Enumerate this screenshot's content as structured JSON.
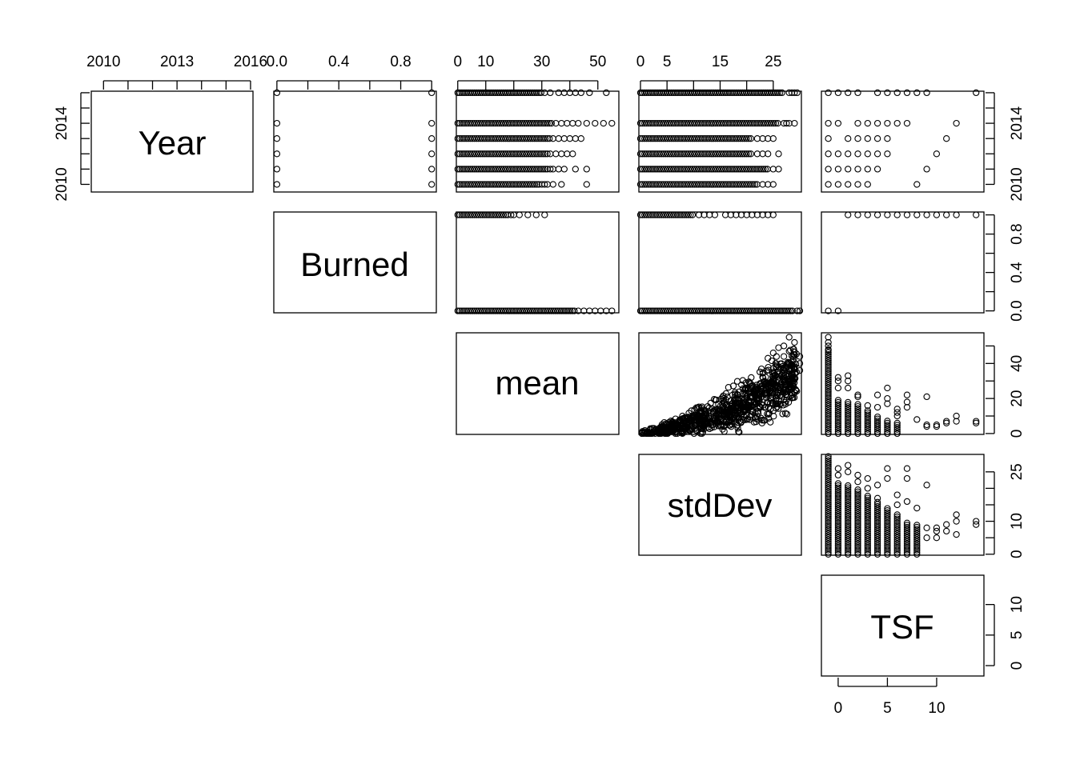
{
  "chart_data": {
    "type": "scatter-matrix",
    "variables": [
      "Year",
      "Burned",
      "mean",
      "stdDev",
      "TSF"
    ],
    "axes": {
      "Year": {
        "range": [
          2009.5,
          2016.1
        ],
        "tick_positions": [
          2010,
          2011,
          2012,
          2013,
          2014,
          2015,
          2016
        ],
        "tick_labels": {
          "top": [
            "2010",
            "2013",
            "2016"
          ],
          "right": [
            "2010",
            "2014"
          ]
        },
        "label_values": {
          "top": [
            2010,
            2013,
            2016
          ],
          "right": [
            2010,
            2014
          ]
        }
      },
      "Burned": {
        "range": [
          -0.02,
          1.03
        ],
        "tick_positions": [
          0,
          0.2,
          0.4,
          0.6,
          0.8,
          1.0
        ],
        "tick_labels": {
          "top": [
            "0.0",
            "0.4",
            "0.8"
          ],
          "right": [
            "0.0",
            "0.4",
            "0.8"
          ]
        },
        "label_values": {
          "top": [
            0,
            0.4,
            0.8
          ],
          "right": [
            0,
            0.4,
            0.8
          ]
        }
      },
      "mean": {
        "range": [
          -0.5,
          57.5
        ],
        "tick_positions": [
          0,
          10,
          20,
          30,
          40,
          50
        ],
        "tick_labels": {
          "top": [
            "0",
            "10",
            "30",
            "50"
          ],
          "right": [
            "0",
            "20",
            "40"
          ]
        },
        "label_values": {
          "top": [
            0,
            10,
            30,
            50
          ],
          "right": [
            0,
            20,
            40
          ]
        }
      },
      "stdDev": {
        "range": [
          -0.3,
          30.3
        ],
        "tick_positions": [
          0,
          5,
          10,
          15,
          20,
          25
        ],
        "tick_labels": {
          "top": [
            "0",
            "5",
            "15",
            "25"
          ],
          "right": [
            "0",
            "10",
            "25"
          ]
        },
        "label_values": {
          "top": [
            0,
            5,
            15,
            25
          ],
          "right": [
            0,
            10,
            25
          ]
        }
      },
      "TSF": {
        "range": [
          -1.7,
          14.8
        ],
        "tick_positions": [
          0,
          5,
          10
        ],
        "tick_labels": {
          "bottom": [
            "0",
            "5",
            "10"
          ],
          "right": [
            "0",
            "5",
            "10"
          ]
        },
        "label_values": {
          "bottom": [
            0,
            5,
            10
          ],
          "right": [
            0,
            5,
            10
          ]
        }
      }
    },
    "panels": [
      {
        "x": "Burned",
        "y": "Year",
        "points": [
          [
            0,
            2010
          ],
          [
            0,
            2011
          ],
          [
            0,
            2012
          ],
          [
            0,
            2013
          ],
          [
            0,
            2014
          ],
          [
            0,
            2016
          ],
          [
            1,
            2010
          ],
          [
            1,
            2011
          ],
          [
            1,
            2012
          ],
          [
            1,
            2013
          ],
          [
            1,
            2014
          ],
          [
            1,
            2016
          ]
        ]
      },
      {
        "x": "mean",
        "y": "Year",
        "bands": [
          {
            "y": 2016,
            "dense_to": 30,
            "sparse": [
              31,
              33,
              36,
              38,
              40,
              42,
              44,
              47,
              53
            ]
          },
          {
            "y": 2014,
            "dense_to": 34,
            "sparse": [
              35,
              37,
              39,
              41,
              43,
              46,
              49,
              52,
              55
            ]
          },
          {
            "y": 2013,
            "dense_to": 33,
            "sparse": [
              34,
              36,
              38,
              40,
              42,
              44
            ]
          },
          {
            "y": 2012,
            "dense_to": 32,
            "sparse": [
              33,
              35,
              37,
              39,
              41
            ]
          },
          {
            "y": 2011,
            "dense_to": 32,
            "sparse": [
              33,
              34,
              36,
              38,
              42,
              46
            ]
          },
          {
            "y": 2010,
            "dense_to": 29,
            "sparse": [
              30,
              31,
              32,
              34,
              37,
              46
            ]
          }
        ]
      },
      {
        "x": "stdDev",
        "y": "Year",
        "bands": [
          {
            "y": 2016,
            "dense_to": 27,
            "sparse": [
              28,
              28.5,
              29,
              29.5
            ]
          },
          {
            "y": 2014,
            "dense_to": 26,
            "sparse": [
              27,
              27.5,
              28,
              29
            ]
          },
          {
            "y": 2013,
            "dense_to": 21,
            "sparse": [
              22,
              23,
              24,
              25
            ]
          },
          {
            "y": 2012,
            "dense_to": 21,
            "sparse": [
              22,
              23,
              24,
              26
            ]
          },
          {
            "y": 2011,
            "dense_to": 24,
            "sparse": [
              25,
              26
            ]
          },
          {
            "y": 2010,
            "dense_to": 22,
            "sparse": [
              23,
              24,
              25
            ]
          }
        ]
      },
      {
        "x": "TSF",
        "y": "Year",
        "points": [
          [
            -1,
            2016
          ],
          [
            0,
            2016
          ],
          [
            1,
            2016
          ],
          [
            2,
            2016
          ],
          [
            4,
            2016
          ],
          [
            5,
            2016
          ],
          [
            6,
            2016
          ],
          [
            7,
            2016
          ],
          [
            8,
            2016
          ],
          [
            9,
            2016
          ],
          [
            14,
            2016
          ],
          [
            -1,
            2014
          ],
          [
            0,
            2014
          ],
          [
            2,
            2014
          ],
          [
            3,
            2014
          ],
          [
            4,
            2014
          ],
          [
            5,
            2014
          ],
          [
            6,
            2014
          ],
          [
            7,
            2014
          ],
          [
            12,
            2014
          ],
          [
            -1,
            2013
          ],
          [
            1,
            2013
          ],
          [
            2,
            2013
          ],
          [
            3,
            2013
          ],
          [
            4,
            2013
          ],
          [
            5,
            2013
          ],
          [
            11,
            2013
          ],
          [
            -1,
            2012
          ],
          [
            0,
            2012
          ],
          [
            1,
            2012
          ],
          [
            2,
            2012
          ],
          [
            3,
            2012
          ],
          [
            4,
            2012
          ],
          [
            5,
            2012
          ],
          [
            10,
            2012
          ],
          [
            -1,
            2011
          ],
          [
            0,
            2011
          ],
          [
            1,
            2011
          ],
          [
            2,
            2011
          ],
          [
            3,
            2011
          ],
          [
            4,
            2011
          ],
          [
            9,
            2011
          ],
          [
            -1,
            2010
          ],
          [
            0,
            2010
          ],
          [
            1,
            2010
          ],
          [
            2,
            2010
          ],
          [
            3,
            2010
          ],
          [
            8,
            2010
          ]
        ]
      },
      {
        "x": "mean",
        "y": "Burned",
        "bands": [
          {
            "y": 1,
            "dense_to": 18,
            "sparse": [
              19,
              20,
              22,
              25,
              28,
              31
            ]
          },
          {
            "y": 0,
            "dense_to": 42,
            "sparse": [
              43,
              45,
              47,
              49,
              51,
              53,
              55
            ]
          }
        ]
      },
      {
        "x": "stdDev",
        "y": "Burned",
        "bands": [
          {
            "y": 1,
            "dense_to": 10,
            "sparse": [
              11,
              12,
              13,
              14,
              16,
              17,
              18,
              19,
              20,
              21,
              22,
              23,
              24,
              25
            ]
          },
          {
            "y": 0,
            "dense_to": 29,
            "sparse": [
              29.5,
              30
            ]
          }
        ]
      },
      {
        "x": "TSF",
        "y": "Burned",
        "points": [
          [
            -1,
            0
          ],
          [
            0,
            0
          ],
          [
            1,
            1
          ],
          [
            2,
            1
          ],
          [
            3,
            1
          ],
          [
            4,
            1
          ],
          [
            5,
            1
          ],
          [
            6,
            1
          ],
          [
            7,
            1
          ],
          [
            8,
            1
          ],
          [
            9,
            1
          ],
          [
            10,
            1
          ],
          [
            11,
            1
          ],
          [
            12,
            1
          ],
          [
            14,
            1
          ]
        ]
      },
      {
        "x": "stdDev",
        "y": "mean",
        "relation": "increasing-cloud",
        "n": 900,
        "points_extra": [
          [
            28,
            55
          ],
          [
            29,
            52
          ],
          [
            27,
            50
          ],
          [
            26,
            49
          ],
          [
            28,
            47
          ],
          [
            25,
            46
          ],
          [
            29,
            45
          ],
          [
            30,
            44
          ],
          [
            27,
            44
          ],
          [
            24,
            43
          ],
          [
            30,
            40
          ],
          [
            29,
            38
          ],
          [
            30,
            36
          ],
          [
            28,
            34
          ]
        ]
      },
      {
        "x": "TSF",
        "y": "mean",
        "points": [
          [
            -1,
            55
          ],
          [
            -1,
            52
          ],
          [
            -1,
            50
          ],
          [
            -1,
            48
          ],
          [
            0,
            32
          ],
          [
            0,
            30
          ],
          [
            0,
            26
          ],
          [
            1,
            33
          ],
          [
            1,
            30
          ],
          [
            1,
            26
          ],
          [
            2,
            22
          ],
          [
            2,
            21
          ],
          [
            3,
            16
          ],
          [
            3,
            13
          ],
          [
            4,
            22
          ],
          [
            4,
            15
          ],
          [
            5,
            26
          ],
          [
            5,
            20
          ],
          [
            5,
            17
          ],
          [
            6,
            14
          ],
          [
            6,
            12
          ],
          [
            6,
            10
          ],
          [
            7,
            22
          ],
          [
            7,
            18
          ],
          [
            7,
            15
          ],
          [
            8,
            8
          ],
          [
            9,
            21
          ],
          [
            9,
            5
          ],
          [
            9,
            4
          ],
          [
            10,
            5
          ],
          [
            10,
            4
          ],
          [
            11,
            7
          ],
          [
            11,
            6
          ],
          [
            12,
            10
          ],
          [
            12,
            7
          ],
          [
            14,
            7
          ],
          [
            14,
            6
          ]
        ],
        "dense_columns": [
          [
            -1,
            0,
            48
          ],
          [
            0,
            0,
            20
          ],
          [
            1,
            0,
            18
          ],
          [
            2,
            0,
            17
          ],
          [
            3,
            0,
            12
          ],
          [
            4,
            0,
            10
          ],
          [
            5,
            0,
            8
          ],
          [
            6,
            0,
            6
          ]
        ]
      },
      {
        "x": "TSF",
        "y": "stdDev",
        "points": [
          [
            0,
            26
          ],
          [
            0,
            24
          ],
          [
            1,
            27
          ],
          [
            1,
            25
          ],
          [
            2,
            24
          ],
          [
            2,
            22
          ],
          [
            3,
            23
          ],
          [
            3,
            20
          ],
          [
            4,
            21
          ],
          [
            4,
            17
          ],
          [
            5,
            26
          ],
          [
            5,
            23
          ],
          [
            6,
            18
          ],
          [
            6,
            15
          ],
          [
            7,
            26
          ],
          [
            7,
            23
          ],
          [
            7,
            16
          ],
          [
            8,
            14
          ],
          [
            9,
            21
          ],
          [
            9,
            8
          ],
          [
            9,
            5
          ],
          [
            10,
            8
          ],
          [
            10,
            7
          ],
          [
            10,
            5
          ],
          [
            11,
            9
          ],
          [
            11,
            7
          ],
          [
            12,
            12
          ],
          [
            12,
            10
          ],
          [
            12,
            6
          ],
          [
            14,
            10
          ],
          [
            14,
            9
          ]
        ],
        "dense_columns": [
          [
            -1,
            0,
            30
          ],
          [
            0,
            0,
            22
          ],
          [
            1,
            0,
            21
          ],
          [
            2,
            0,
            20
          ],
          [
            3,
            0,
            18
          ],
          [
            4,
            0,
            16
          ],
          [
            5,
            0,
            14
          ],
          [
            6,
            0,
            12
          ],
          [
            7,
            0,
            10
          ],
          [
            8,
            0,
            9
          ]
        ]
      }
    ]
  },
  "diagonal_labels": {
    "Year": "Year",
    "Burned": "Burned",
    "mean": "mean",
    "stdDev": "stdDev",
    "TSF": "TSF"
  }
}
